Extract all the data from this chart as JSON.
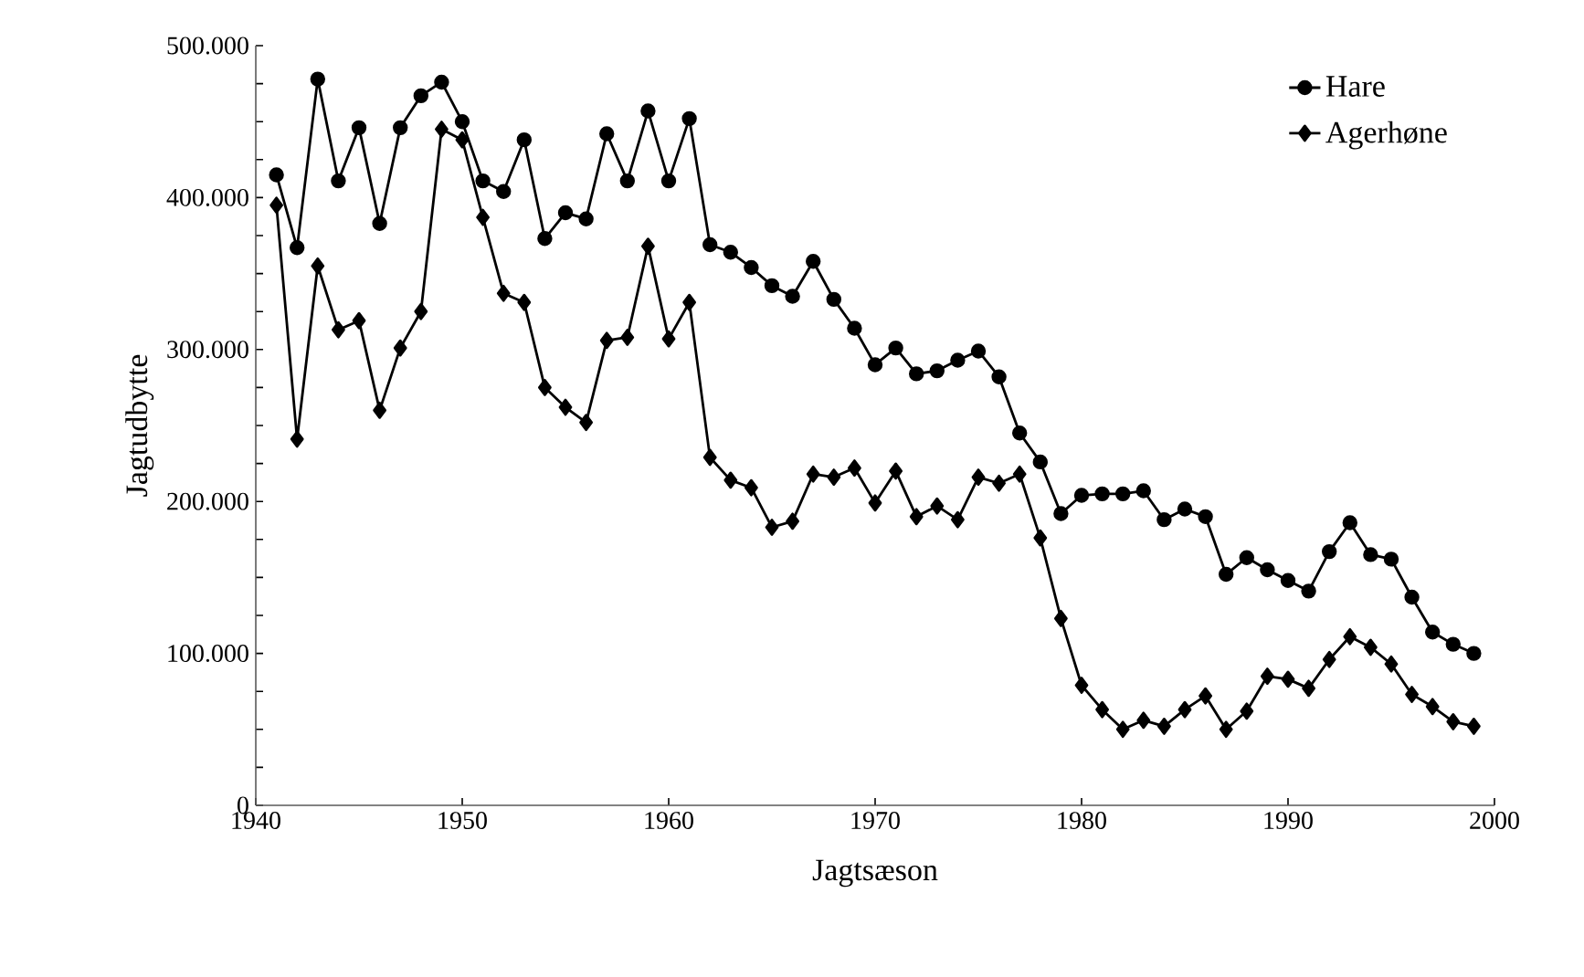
{
  "chart_data": {
    "type": "line",
    "xlabel": "Jagtsæson",
    "ylabel": "Jagtudbytte",
    "x": [
      1941,
      1942,
      1943,
      1944,
      1945,
      1946,
      1947,
      1948,
      1949,
      1950,
      1951,
      1952,
      1953,
      1954,
      1955,
      1956,
      1957,
      1958,
      1959,
      1960,
      1961,
      1962,
      1963,
      1964,
      1965,
      1966,
      1967,
      1968,
      1969,
      1970,
      1971,
      1972,
      1973,
      1974,
      1975,
      1976,
      1977,
      1978,
      1979,
      1980,
      1981,
      1982,
      1983,
      1984,
      1985,
      1986,
      1987,
      1988,
      1989,
      1990,
      1991,
      1992,
      1993,
      1994,
      1995,
      1996,
      1997,
      1998,
      1999
    ],
    "series": [
      {
        "name": "Hare",
        "color": "#000000",
        "marker": "circle",
        "values": [
          415000,
          367000,
          478000,
          411000,
          446000,
          383000,
          446000,
          467000,
          476000,
          450000,
          411000,
          404000,
          438000,
          373000,
          390000,
          386000,
          442000,
          411000,
          457000,
          411000,
          452000,
          369000,
          364000,
          354000,
          342000,
          335000,
          358000,
          333000,
          314000,
          290000,
          301000,
          284000,
          286000,
          293000,
          299000,
          282000,
          245000,
          226000,
          192000,
          204000,
          205000,
          205000,
          207000,
          188000,
          195000,
          190000,
          152000,
          163000,
          155000,
          148000,
          141000,
          167000,
          186000,
          165000,
          162000,
          137000,
          114000,
          106000,
          100000
        ]
      },
      {
        "name": "Agerhøne",
        "color": "#000000",
        "marker": "diamond",
        "values": [
          395000,
          241000,
          355000,
          313000,
          319000,
          260000,
          301000,
          325000,
          445000,
          438000,
          387000,
          337000,
          331000,
          275000,
          262000,
          252000,
          306000,
          308000,
          368000,
          307000,
          331000,
          229000,
          214000,
          209000,
          183000,
          187000,
          218000,
          216000,
          222000,
          199000,
          220000,
          190000,
          197000,
          188000,
          216000,
          212000,
          218000,
          176000,
          123000,
          79000,
          63000,
          50000,
          56000,
          52000,
          63000,
          72000,
          50000,
          62000,
          85000,
          83000,
          77000,
          96000,
          111000,
          104000,
          93000,
          73000,
          65000,
          55000,
          52000
        ]
      }
    ],
    "xlim": [
      1940,
      2000
    ],
    "xticks": [
      1940,
      1950,
      1960,
      1970,
      1980,
      1990,
      2000
    ],
    "ylim": [
      0,
      500000
    ],
    "yticks": [
      {
        "value": 0,
        "label": "0"
      },
      {
        "value": 25000,
        "label": null
      },
      {
        "value": 50000,
        "label": null
      },
      {
        "value": 75000,
        "label": null
      },
      {
        "value": 100000,
        "label": "100.000"
      },
      {
        "value": 125000,
        "label": null
      },
      {
        "value": 150000,
        "label": null
      },
      {
        "value": 175000,
        "label": null
      },
      {
        "value": 200000,
        "label": "200.000"
      },
      {
        "value": 225000,
        "label": null
      },
      {
        "value": 250000,
        "label": null
      },
      {
        "value": 275000,
        "label": null
      },
      {
        "value": 300000,
        "label": "300.000"
      },
      {
        "value": 325000,
        "label": null
      },
      {
        "value": 350000,
        "label": null
      },
      {
        "value": 375000,
        "label": null
      },
      {
        "value": 400000,
        "label": "400.000"
      },
      {
        "value": 425000,
        "label": null
      },
      {
        "value": 450000,
        "label": null
      },
      {
        "value": 475000,
        "label": null
      },
      {
        "value": 500000,
        "label": "500.000"
      }
    ],
    "legend": "top right",
    "grid": false,
    "line_style": "solid"
  }
}
